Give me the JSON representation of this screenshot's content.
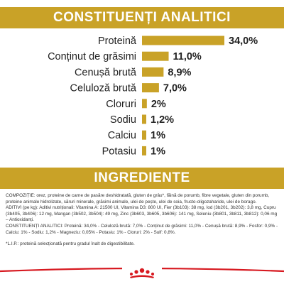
{
  "section_analytic": {
    "title": "CONSTITUENȚI ANALITICI"
  },
  "section_ingredients": {
    "title": "INGREDIENTE"
  },
  "chart_data": {
    "type": "bar",
    "orientation": "horizontal",
    "categories": [
      "Proteină",
      "Conținut de grăsimi",
      "Cenușă brută",
      "Celuloză brută",
      "Cloruri",
      "Sodiu",
      "Calciu",
      "Potasiu"
    ],
    "values": [
      34.0,
      11.0,
      8.9,
      7.0,
      2.0,
      1.2,
      1.0,
      1.0
    ],
    "value_labels": [
      "34,0%",
      "11,0%",
      "8,9%",
      "7,0%",
      "2%",
      "1,2%",
      "1%",
      "1%"
    ],
    "unit": "%",
    "title": "CONSTITUENȚI ANALITICI",
    "xlim": [
      0,
      34
    ],
    "bar_color": "#c9a227",
    "grid": false,
    "legend": "none"
  },
  "ingredients": {
    "composition": "COMPOZIȚIE: orez, proteine de carne de pasăre deshidratată, gluten de grâu*, făină de porumb, fibre vegetale, gluten din porumb, proteine animale hidrolizate, săruri minerale, grăsimi animale, ulei de pește, ulei de soia, fructo-oligozaharide, ulei de borago.",
    "additives": "ADITIVI (pe kg): Aditivi nutriționali: Vitamina A: 21500 UI, Vitamina D3: 800 UI, Fier (3b103): 38 mg, Iod (3b201, 3b202): 3,8 mg, Cupru (3b405, 3b406): 12 mg, Mangan (3b502, 3b504): 49 mg, Zinc (3b603, 3b605, 3b606): 141 mg, Seleniu (3b801, 3b811, 3b812): 0,06 mg – Antioxidanți.",
    "analytic": "CONSTITUENȚI ANALITICI: Proteină: 34,0% - Celuloză brută: 7,0% - Conținut de grăsimi: 11,0% - Cenușă brută: 8,9% - Fosfor: 0,9% - Calciu: 1% - Sodiu: 1,2% - Magneziu: 0,05% - Potasiu: 1% - Cloruri: 2% - Sulf: 0,8%.",
    "note": "*L.I.P.: proteină selecționată pentru gradul înalt de digestibilitate."
  },
  "colors": {
    "accent_gold": "#c9a227",
    "brand_red": "#d71920",
    "text": "#333333"
  },
  "footer": {
    "logo_icon": "royal-canin-crown-icon"
  }
}
